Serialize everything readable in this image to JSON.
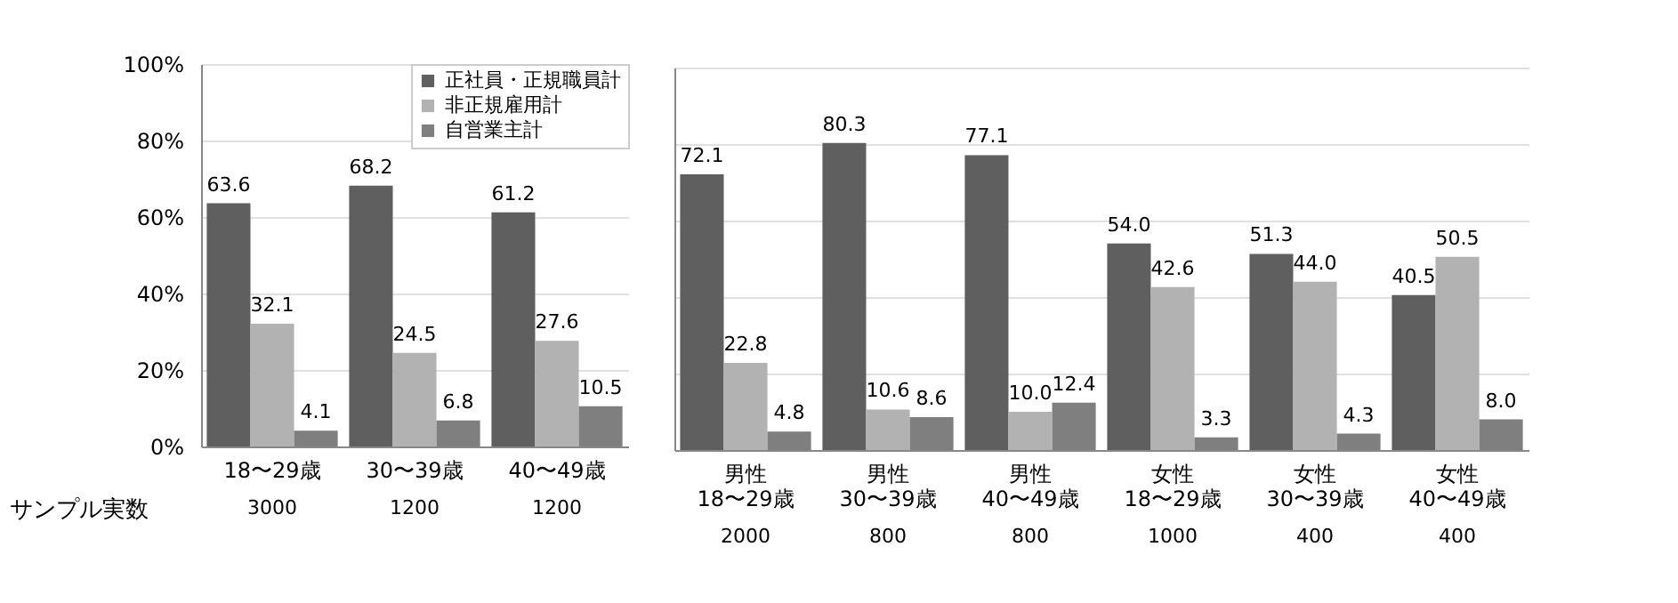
{
  "chart_data": [
    {
      "type": "bar",
      "categories": [
        "18〜29歳",
        "30〜39歳",
        "40〜49歳"
      ],
      "series": [
        {
          "name": "正社員・正規職員計",
          "color": "#5f5f5f",
          "values": [
            63.6,
            68.2,
            61.2
          ]
        },
        {
          "name": "非正規雇用計",
          "color": "#b2b2b2",
          "values": [
            32.1,
            24.5,
            27.6
          ]
        },
        {
          "name": "自営業主計",
          "color": "#7f7f7f",
          "values": [
            4.1,
            6.8,
            10.5
          ]
        }
      ],
      "ylim": [
        0,
        100
      ],
      "yticks": [
        {
          "value": 0,
          "label": "0%"
        },
        {
          "value": 20,
          "label": "20%"
        },
        {
          "value": 40,
          "label": "40%"
        },
        {
          "value": 60,
          "label": "60%"
        },
        {
          "value": 80,
          "label": "80%"
        },
        {
          "value": 100,
          "label": "100%"
        }
      ],
      "grid": "y",
      "legend": "top right",
      "value_labels": [
        [
          "63.6",
          "68.2",
          "61.2"
        ],
        [
          "32.1",
          "24.5",
          "27.6"
        ],
        [
          "4.1",
          "6.8",
          "10.5"
        ]
      ],
      "annotations": [
        "サンプル実数",
        "3000",
        "1200",
        "1200"
      ]
    },
    {
      "type": "bar",
      "categories": [
        "男性 18〜29歳",
        "男性 30〜39歳",
        "男性 40〜49歳",
        "女性 18〜29歳",
        "女性 30〜39歳",
        "女性 40〜49歳"
      ],
      "series": [
        {
          "color": "#5f5f5f",
          "values": [
            72.1,
            80.3,
            77.1,
            54.0,
            51.3,
            40.5
          ],
          "value_labels": [
            "72.1",
            "80.3",
            "77.1",
            "54.0",
            "51.3",
            "40.5"
          ]
        },
        {
          "color": "#b2b2b2",
          "values": [
            22.8,
            10.6,
            10.0,
            42.6,
            44.0,
            50.5
          ],
          "value_labels": [
            "22.8",
            "10.6",
            "10.0",
            "42.6",
            "44.0",
            "50.5"
          ]
        },
        {
          "color": "#7f7f7f",
          "values": [
            4.8,
            8.6,
            12.4,
            3.3,
            4.3,
            8.0
          ],
          "value_labels": [
            "4.8",
            "8.6",
            "12.4",
            "3.3",
            "4.3",
            "8.0"
          ]
        }
      ],
      "ylim": [
        0,
        100
      ],
      "yticks": [
        0,
        20,
        40,
        60,
        80,
        100
      ],
      "grid": "y",
      "tick_labels": "x",
      "annotations": [
        "2000",
        "800",
        "800",
        "1000",
        "400",
        "400"
      ]
    }
  ]
}
